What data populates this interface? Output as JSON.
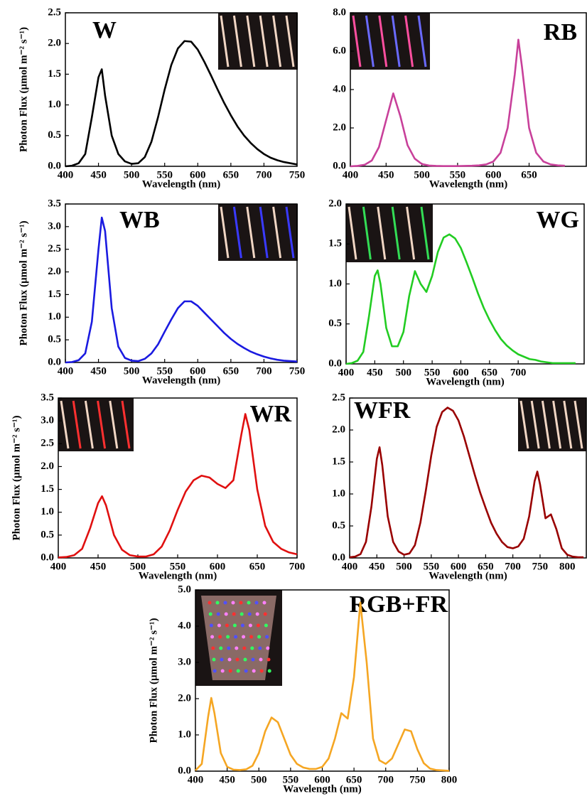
{
  "chart_data": [
    {
      "type": "line",
      "title": "W",
      "xlabel": "Wavelength (nm)",
      "ylabel": "Photon Flux (µmol m⁻² s⁻¹)",
      "color": "#000000",
      "xlim": [
        400,
        750
      ],
      "ylim": [
        0,
        2.5
      ],
      "xticks": [
        400,
        450,
        500,
        550,
        600,
        650,
        700,
        750
      ],
      "yticks": [
        {
          "value": 0,
          "label": "0.0"
        },
        0.5,
        {
          "value": 1,
          "label": "1.0"
        },
        1.5,
        {
          "value": 2,
          "label": "2.0"
        },
        2.5
      ],
      "x": [
        400,
        410,
        420,
        430,
        440,
        450,
        455,
        460,
        470,
        480,
        490,
        500,
        510,
        520,
        530,
        540,
        550,
        560,
        570,
        580,
        590,
        600,
        610,
        620,
        630,
        640,
        650,
        660,
        670,
        680,
        690,
        700,
        710,
        720,
        730,
        740,
        750
      ],
      "values": [
        0,
        0.01,
        0.05,
        0.2,
        0.8,
        1.45,
        1.58,
        1.15,
        0.5,
        0.2,
        0.08,
        0.04,
        0.05,
        0.15,
        0.4,
        0.8,
        1.25,
        1.65,
        1.92,
        2.04,
        2.03,
        1.9,
        1.7,
        1.48,
        1.25,
        1.03,
        0.83,
        0.65,
        0.5,
        0.38,
        0.28,
        0.2,
        0.14,
        0.1,
        0.07,
        0.05,
        0.03
      ]
    },
    {
      "type": "line",
      "title": "RB",
      "xlabel": "Wavelength (nm)",
      "color": "#c8409a",
      "xlim": [
        400,
        730
      ],
      "ylim": [
        0,
        8
      ],
      "xticks": [
        400,
        450,
        500,
        550,
        600,
        650
      ],
      "yticks": [
        {
          "value": 0,
          "label": "0.0"
        },
        {
          "value": 2,
          "label": "2.0"
        },
        {
          "value": 4,
          "label": "4.0"
        },
        {
          "value": 6,
          "label": "6.0"
        },
        {
          "value": 8,
          "label": "8.0"
        }
      ],
      "x": [
        400,
        410,
        420,
        430,
        440,
        450,
        460,
        470,
        480,
        490,
        500,
        510,
        520,
        530,
        540,
        550,
        560,
        570,
        580,
        590,
        600,
        610,
        620,
        630,
        635,
        640,
        650,
        660,
        670,
        680,
        690,
        700
      ],
      "values": [
        0,
        0.02,
        0.08,
        0.3,
        1.0,
        2.4,
        3.8,
        2.6,
        1.1,
        0.4,
        0.12,
        0.04,
        0.02,
        0.01,
        0.01,
        0.01,
        0.02,
        0.03,
        0.05,
        0.1,
        0.25,
        0.7,
        2.0,
        4.8,
        6.6,
        5.2,
        2.0,
        0.7,
        0.25,
        0.1,
        0.05,
        0.03
      ]
    },
    {
      "type": "line",
      "title": "WB",
      "xlabel": "Wavelength (nm)",
      "ylabel": "Photon Flux (µmol m⁻² s⁻¹)",
      "color": "#1a1ae0",
      "xlim": [
        400,
        750
      ],
      "ylim": [
        0,
        3.5
      ],
      "xticks": [
        400,
        450,
        500,
        550,
        600,
        650,
        700,
        750
      ],
      "yticks": [
        {
          "value": 0,
          "label": "0.0"
        },
        0.5,
        {
          "value": 1,
          "label": "1.0"
        },
        1.5,
        {
          "value": 2,
          "label": "2.0"
        },
        2.5,
        {
          "value": 3,
          "label": "3.0"
        },
        3.5
      ],
      "x": [
        400,
        410,
        420,
        430,
        440,
        450,
        455,
        460,
        470,
        480,
        490,
        500,
        510,
        520,
        530,
        540,
        550,
        560,
        570,
        580,
        590,
        600,
        610,
        620,
        630,
        640,
        650,
        660,
        670,
        680,
        690,
        700,
        710,
        720,
        730,
        740,
        750
      ],
      "values": [
        0,
        0.01,
        0.05,
        0.2,
        0.9,
        2.5,
        3.2,
        2.9,
        1.2,
        0.35,
        0.1,
        0.04,
        0.03,
        0.08,
        0.2,
        0.4,
        0.68,
        0.95,
        1.2,
        1.35,
        1.35,
        1.25,
        1.1,
        0.95,
        0.8,
        0.65,
        0.52,
        0.41,
        0.32,
        0.24,
        0.18,
        0.13,
        0.09,
        0.06,
        0.04,
        0.03,
        0.02
      ]
    },
    {
      "type": "line",
      "title": "WG",
      "xlabel": "Wavelength (nm)",
      "color": "#22cc22",
      "xlim": [
        400,
        815
      ],
      "ylim": [
        0,
        2
      ],
      "xticks": [
        400,
        450,
        500,
        550,
        600,
        650,
        700
      ],
      "yticks": [
        {
          "value": 0,
          "label": "0.0"
        },
        0.5,
        {
          "value": 1,
          "label": "1.0"
        },
        1.5,
        {
          "value": 2,
          "label": "2.0"
        }
      ],
      "x": [
        400,
        410,
        420,
        430,
        440,
        450,
        455,
        460,
        470,
        480,
        490,
        500,
        510,
        520,
        530,
        540,
        550,
        560,
        570,
        580,
        590,
        600,
        610,
        620,
        630,
        640,
        650,
        660,
        670,
        680,
        690,
        700,
        710,
        720,
        730,
        740,
        750,
        760,
        770,
        780,
        790,
        800
      ],
      "values": [
        0,
        0.01,
        0.04,
        0.15,
        0.6,
        1.1,
        1.17,
        1.0,
        0.45,
        0.22,
        0.22,
        0.4,
        0.85,
        1.16,
        1.0,
        0.9,
        1.1,
        1.4,
        1.58,
        1.62,
        1.57,
        1.45,
        1.27,
        1.08,
        0.88,
        0.7,
        0.55,
        0.42,
        0.31,
        0.23,
        0.17,
        0.12,
        0.09,
        0.06,
        0.05,
        0.03,
        0.02,
        0.01,
        0.01,
        0.01,
        0.01,
        0.01
      ]
    },
    {
      "type": "line",
      "title": "WR",
      "xlabel": "Wavelength (nm)",
      "ylabel": "Photon Flux (µmol m⁻² s⁻¹)",
      "color": "#e01010",
      "xlim": [
        400,
        700
      ],
      "ylim": [
        0,
        3.5
      ],
      "xticks": [
        400,
        450,
        500,
        550,
        600,
        650,
        700
      ],
      "yticks": [
        {
          "value": 0,
          "label": "0.0"
        },
        0.5,
        {
          "value": 1,
          "label": "1.0"
        },
        1.5,
        {
          "value": 2,
          "label": "2.0"
        },
        2.5,
        {
          "value": 3,
          "label": "3.0"
        },
        3.5
      ],
      "x": [
        400,
        410,
        420,
        430,
        440,
        450,
        455,
        460,
        470,
        480,
        490,
        500,
        510,
        520,
        530,
        540,
        550,
        560,
        570,
        580,
        590,
        600,
        610,
        620,
        630,
        635,
        640,
        650,
        660,
        670,
        680,
        690,
        700
      ],
      "values": [
        0.01,
        0.02,
        0.06,
        0.2,
        0.65,
        1.2,
        1.35,
        1.15,
        0.5,
        0.18,
        0.06,
        0.03,
        0.03,
        0.08,
        0.25,
        0.6,
        1.05,
        1.45,
        1.7,
        1.8,
        1.76,
        1.62,
        1.53,
        1.7,
        2.7,
        3.15,
        2.8,
        1.5,
        0.7,
        0.35,
        0.2,
        0.12,
        0.08
      ]
    },
    {
      "type": "line",
      "title": "WFR",
      "xlabel": "Wavelength (nm)",
      "color": "#990000",
      "xlim": [
        400,
        835
      ],
      "ylim": [
        0,
        2.5
      ],
      "xticks": [
        400,
        450,
        500,
        550,
        600,
        650,
        700,
        750,
        800
      ],
      "yticks": [
        {
          "value": 0,
          "label": "0.0"
        },
        0.5,
        {
          "value": 1,
          "label": "1.0"
        },
        1.5,
        {
          "value": 2,
          "label": "2.0"
        },
        2.5
      ],
      "x": [
        400,
        410,
        420,
        430,
        440,
        450,
        455,
        460,
        470,
        480,
        490,
        500,
        510,
        520,
        530,
        540,
        550,
        560,
        570,
        580,
        590,
        600,
        610,
        620,
        630,
        640,
        650,
        660,
        670,
        680,
        690,
        700,
        710,
        720,
        730,
        740,
        745,
        750,
        760,
        770,
        780,
        790,
        800,
        810,
        820,
        830
      ],
      "values": [
        0.01,
        0.02,
        0.06,
        0.25,
        0.8,
        1.55,
        1.73,
        1.45,
        0.65,
        0.25,
        0.1,
        0.05,
        0.07,
        0.2,
        0.55,
        1.05,
        1.6,
        2.05,
        2.28,
        2.35,
        2.3,
        2.15,
        1.9,
        1.6,
        1.3,
        1.02,
        0.78,
        0.55,
        0.38,
        0.25,
        0.17,
        0.15,
        0.18,
        0.3,
        0.65,
        1.2,
        1.35,
        1.15,
        0.62,
        0.68,
        0.45,
        0.15,
        0.05,
        0.02,
        0.01,
        0.01
      ]
    },
    {
      "type": "line",
      "title": "RGB+FR",
      "xlabel": "Wavelength (nm)",
      "ylabel": "Photon Flux (µmol m⁻² s⁻¹)",
      "color": "#f5a623",
      "xlim": [
        400,
        800
      ],
      "ylim": [
        0,
        5
      ],
      "xticks": [
        400,
        450,
        500,
        550,
        600,
        650,
        700,
        750,
        800
      ],
      "yticks": [
        {
          "value": 0,
          "label": "0.0"
        },
        {
          "value": 1,
          "label": "1.0"
        },
        {
          "value": 2,
          "label": "2.0"
        },
        {
          "value": 3,
          "label": "3.0"
        },
        {
          "value": 4,
          "label": "4.0"
        },
        {
          "value": 5,
          "label": "5.0"
        }
      ],
      "x": [
        400,
        410,
        420,
        425,
        430,
        440,
        450,
        460,
        470,
        480,
        490,
        500,
        510,
        520,
        530,
        540,
        550,
        560,
        570,
        580,
        590,
        600,
        610,
        620,
        630,
        640,
        650,
        660,
        670,
        680,
        690,
        700,
        710,
        720,
        730,
        740,
        750,
        760,
        770,
        780,
        790,
        800
      ],
      "values": [
        0.02,
        0.2,
        1.5,
        2.02,
        1.6,
        0.5,
        0.12,
        0.04,
        0.03,
        0.05,
        0.15,
        0.5,
        1.1,
        1.48,
        1.35,
        0.9,
        0.45,
        0.2,
        0.1,
        0.06,
        0.06,
        0.12,
        0.35,
        0.9,
        1.6,
        1.45,
        2.6,
        4.65,
        3.0,
        0.9,
        0.3,
        0.2,
        0.35,
        0.75,
        1.15,
        1.1,
        0.6,
        0.22,
        0.07,
        0.03,
        0.02,
        0.01
      ]
    }
  ]
}
